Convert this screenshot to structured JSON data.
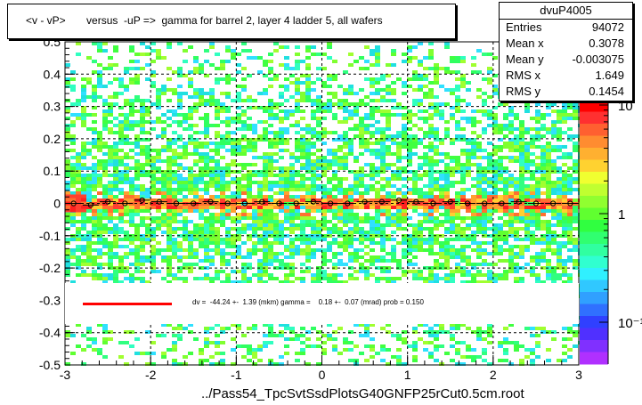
{
  "title": "<v - vP>       versus  -uP =>  gamma for barrel 2, layer 4 ladder 5, all wafers",
  "stats": {
    "name": "dvuP4005",
    "rows": [
      {
        "label": "Entries",
        "value": "94072"
      },
      {
        "label": "Mean x",
        "value": "0.3078"
      },
      {
        "label": "Mean y",
        "value": "-0.003075"
      },
      {
        "label": "RMS x",
        "value": "1.649"
      },
      {
        "label": "RMS y",
        "value": "0.1454"
      }
    ]
  },
  "fit_text": "dv =  -44.24 +-  1.39 (mkm) gamma =    0.18 +-  0.07 (mrad) prob = 0.150",
  "footer": "../Pass54_TpcSvtSsdPlotsG40GNFP25rCut0.5cm.root",
  "colors": {
    "fit_line": "#ff0000",
    "profile": "#000000"
  },
  "chart_data": {
    "type": "heatmap",
    "xlim": [
      -3,
      3
    ],
    "ylim": [
      -0.5,
      0.5
    ],
    "x_ticks": [
      "-3",
      "-2",
      "-1",
      "0",
      "1",
      "2",
      "3"
    ],
    "y_ticks": [
      "-0.5",
      "-0.4",
      "-0.3",
      "-0.2",
      "-0.1",
      "0",
      "0.1",
      "0.2",
      "0.3",
      "0.4",
      "0.5"
    ],
    "grid": true,
    "z_scale": "log",
    "z_ticks": [
      "10",
      "1",
      "10⁻¹"
    ],
    "profile": {
      "x": [
        -2.9,
        -2.7,
        -2.5,
        -2.3,
        -2.1,
        -1.9,
        -1.7,
        -1.5,
        -1.3,
        -1.1,
        -0.9,
        -0.7,
        -0.5,
        -0.3,
        -0.1,
        0.1,
        0.3,
        0.5,
        0.7,
        0.9,
        1.1,
        1.3,
        1.5,
        1.7,
        1.9,
        2.1,
        2.3,
        2.5,
        2.7,
        2.9
      ],
      "y": [
        0.0,
        -0.005,
        0.005,
        0.0,
        0.01,
        0.005,
        0.0,
        0.0,
        0.005,
        0.0,
        0.0,
        0.005,
        0.0,
        0.0,
        0.005,
        0.0,
        0.0,
        0.005,
        0.005,
        0.01,
        0.005,
        0.0,
        0.005,
        0.0,
        0.0,
        0.0,
        0.005,
        0.0,
        0.0,
        0.0
      ]
    }
  }
}
